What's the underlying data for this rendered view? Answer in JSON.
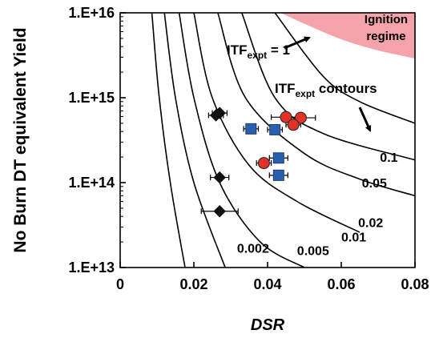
{
  "chart_data": {
    "type": "scatter",
    "xlabel": "DSR",
    "ylabel": "No Burn DT equivalent Yield",
    "xlim": [
      0,
      0.08
    ],
    "ylim": [
      10000000000000.0,
      1e+16
    ],
    "yscale": "log",
    "x_ticks": [
      "0",
      "0.02",
      "0.04",
      "0.06",
      "0.08"
    ],
    "y_ticks": [
      "1.E+13",
      "1.E+14",
      "1.E+15",
      "1.E+16"
    ],
    "contours": [
      {
        "label": "0.002",
        "knots": [
          [
            0.0086,
            1e+16
          ],
          [
            0.0106,
            1000000000000000.0
          ],
          [
            0.0136,
            100000000000000.0
          ],
          [
            0.0176,
            10000000000000.0
          ]
        ]
      },
      {
        "label": "0.005",
        "knots": [
          [
            0.012,
            1e+16
          ],
          [
            0.015,
            1000000000000000.0
          ],
          [
            0.02,
            100000000000000.0
          ],
          [
            0.0285,
            10000000000000.0
          ]
        ]
      },
      {
        "label": "0.01",
        "knots": [
          [
            0.016,
            1e+16
          ],
          [
            0.02,
            1000000000000000.0
          ],
          [
            0.027,
            100000000000000.0
          ],
          [
            0.038,
            20000000000000.0
          ],
          [
            0.05,
            10000000000000.0
          ]
        ]
      },
      {
        "label": "0.02",
        "knots": [
          [
            0.02,
            1e+16
          ],
          [
            0.025,
            1000000000000000.0
          ],
          [
            0.035,
            160000000000000.0
          ],
          [
            0.048,
            60000000000000.0
          ],
          [
            0.065,
            26000000000000.0
          ]
        ]
      },
      {
        "label": "0.05",
        "knots": [
          [
            0.0265,
            1e+16
          ],
          [
            0.034,
            1000000000000000.0
          ],
          [
            0.05,
            220000000000000.0
          ],
          [
            0.065,
            110000000000000.0
          ],
          [
            0.08,
            70000000000000.0
          ]
        ]
      },
      {
        "label": "0.1",
        "knots": [
          [
            0.033,
            1e+16
          ],
          [
            0.042,
            1000000000000000.0
          ],
          [
            0.055,
            380000000000000.0
          ],
          [
            0.08,
            185000000000000.0
          ]
        ]
      },
      {
        "label": "",
        "knots": [
          [
            0.042,
            1e+16
          ],
          [
            0.055,
            1800000000000000.0
          ],
          [
            0.065,
            900000000000000.0
          ],
          [
            0.08,
            500000000000000.0
          ]
        ]
      }
    ],
    "contour_labels": [
      {
        "text": "0.1",
        "x": 0.0705,
        "y": 200000000000000.0
      },
      {
        "text": "0.05",
        "x": 0.0656,
        "y": 100000000000000.0
      },
      {
        "text": "0.02",
        "x": 0.0646,
        "y": 34000000000000.0
      },
      {
        "text": "0.01",
        "x": 0.06,
        "y": 23000000000000.0
      },
      {
        "text": "0.005",
        "x": 0.048,
        "y": 16000000000000.0
      },
      {
        "text": "0.002",
        "x": 0.0317,
        "y": 17000000000000.0
      }
    ],
    "ignition_region": {
      "label": [
        "Ignition",
        "regime"
      ],
      "boundary": [
        [
          0.0435,
          1e+16
        ],
        [
          0.053,
          6500000000000000.0
        ],
        [
          0.061,
          4700000000000000.0
        ],
        [
          0.07,
          3600000000000000.0
        ],
        [
          0.08,
          2900000000000000.0
        ]
      ],
      "color": "#f4a3aa"
    },
    "annotations": {
      "itf_one": {
        "base": "ITF",
        "sub": "expt",
        "suffix": " = 1"
      },
      "itf_contours": {
        "base": "ITF",
        "sub": "expt",
        "suffix": " contours"
      }
    },
    "series": [
      {
        "marker": "diamond",
        "color": "#111111",
        "points": [
          {
            "x": 0.026,
            "y": 620000000000000.0,
            "xerr": 0.002
          },
          {
            "x": 0.027,
            "y": 660000000000000.0,
            "xerr": 0.002
          },
          {
            "x": 0.027,
            "y": 115000000000000.0,
            "xerr": 0.0025
          },
          {
            "x": 0.027,
            "y": 46000000000000.0,
            "xerr": 0.005
          }
        ]
      },
      {
        "marker": "square",
        "color": "#2a5fad",
        "points": [
          {
            "x": 0.0355,
            "y": 430000000000000.0,
            "xerr": 0.002
          },
          {
            "x": 0.042,
            "y": 420000000000000.0,
            "xerr": 0.002
          },
          {
            "x": 0.043,
            "y": 195000000000000.0,
            "xerr": 0.0025
          },
          {
            "x": 0.043,
            "y": 122000000000000.0,
            "xerr": 0.0025
          }
        ]
      },
      {
        "marker": "circle",
        "color": "#e23228",
        "points": [
          {
            "x": 0.045,
            "y": 590000000000000.0,
            "xerr": 0.004
          },
          {
            "x": 0.049,
            "y": 580000000000000.0,
            "xerr": 0.004
          },
          {
            "x": 0.047,
            "y": 480000000000000.0,
            "xerr": 0.002
          },
          {
            "x": 0.039,
            "y": 170000000000000.0,
            "xerr": 0.002
          }
        ]
      }
    ]
  }
}
